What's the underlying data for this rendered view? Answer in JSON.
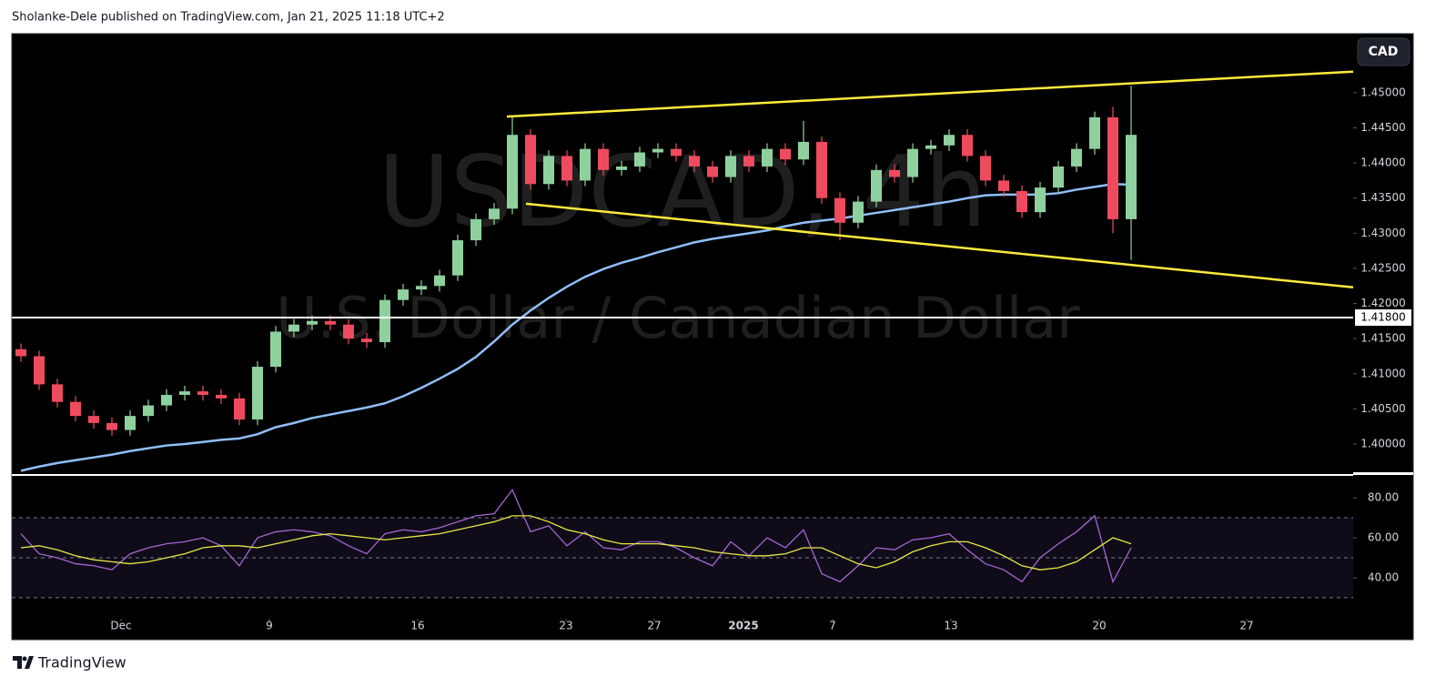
{
  "header": "Sholanke-Dele published on TradingView.com, Jan 21, 2025 11:18 UTC+2",
  "footer": "TradingView",
  "chart_data": [
    {
      "type": "candlestick",
      "title": "USDCAD, 4h",
      "subtitle": "U.S. Dollar / Canadian Dollar",
      "currency": "CAD",
      "up_color": "#8fd19e",
      "down_color": "#ef4b5f",
      "open": [
        1.4135,
        1.4125,
        1.4085,
        1.406,
        1.404,
        1.403,
        1.402,
        1.404,
        1.4055,
        1.407,
        1.4075,
        1.407,
        1.4065,
        1.4035,
        1.411,
        1.416,
        1.417,
        1.4175,
        1.417,
        1.415,
        1.4145,
        1.4205,
        1.422,
        1.4225,
        1.424,
        1.429,
        1.432,
        1.4335,
        1.444,
        1.437,
        1.441,
        1.4375,
        1.442,
        1.439,
        1.4395,
        1.4415,
        1.442,
        1.441,
        1.4395,
        1.438,
        1.441,
        1.4395,
        1.442,
        1.4405,
        1.443,
        1.435,
        1.4315,
        1.4345,
        1.439,
        1.438,
        1.442,
        1.4425,
        1.444,
        1.441,
        1.4375,
        1.436,
        1.433,
        1.4365,
        1.4395,
        1.442,
        1.4465,
        1.432
      ],
      "high": [
        1.4143,
        1.4133,
        1.4093,
        1.4068,
        1.4048,
        1.4038,
        1.4048,
        1.4063,
        1.4078,
        1.4083,
        1.4083,
        1.4078,
        1.4073,
        1.4118,
        1.4168,
        1.4178,
        1.4183,
        1.4183,
        1.4178,
        1.4158,
        1.4213,
        1.4228,
        1.4233,
        1.4248,
        1.4298,
        1.4328,
        1.4343,
        1.4465,
        1.4448,
        1.4418,
        1.4418,
        1.4428,
        1.4428,
        1.4403,
        1.4423,
        1.4428,
        1.4428,
        1.4418,
        1.4403,
        1.4418,
        1.4418,
        1.4428,
        1.4428,
        1.446,
        1.4438,
        1.4358,
        1.4353,
        1.4398,
        1.4398,
        1.4428,
        1.4433,
        1.4448,
        1.4448,
        1.4418,
        1.4383,
        1.4368,
        1.4373,
        1.4403,
        1.4428,
        1.4473,
        1.448,
        1.451
      ],
      "low": [
        1.4117,
        1.4077,
        1.4052,
        1.4032,
        1.4022,
        1.4012,
        1.4012,
        1.4032,
        1.4047,
        1.4062,
        1.4062,
        1.4057,
        1.4027,
        1.4027,
        1.4102,
        1.4152,
        1.4162,
        1.4162,
        1.4142,
        1.4137,
        1.4137,
        1.4197,
        1.4212,
        1.4217,
        1.4232,
        1.4282,
        1.4312,
        1.4327,
        1.4362,
        1.4362,
        1.4367,
        1.4367,
        1.4382,
        1.4382,
        1.4387,
        1.4407,
        1.4402,
        1.4387,
        1.4372,
        1.4372,
        1.4387,
        1.4387,
        1.4397,
        1.4397,
        1.4342,
        1.429,
        1.4307,
        1.4337,
        1.4372,
        1.4372,
        1.4412,
        1.4417,
        1.4402,
        1.4367,
        1.4352,
        1.4322,
        1.4322,
        1.4357,
        1.4387,
        1.4412,
        1.43,
        1.4262
      ],
      "close": [
        1.4125,
        1.4085,
        1.406,
        1.404,
        1.403,
        1.402,
        1.404,
        1.4055,
        1.407,
        1.4075,
        1.407,
        1.4065,
        1.4035,
        1.411,
        1.416,
        1.417,
        1.4175,
        1.417,
        1.415,
        1.4145,
        1.4205,
        1.422,
        1.4225,
        1.424,
        1.429,
        1.432,
        1.4335,
        1.444,
        1.437,
        1.441,
        1.4375,
        1.442,
        1.439,
        1.4395,
        1.4415,
        1.442,
        1.441,
        1.4395,
        1.438,
        1.441,
        1.4395,
        1.442,
        1.4405,
        1.443,
        1.435,
        1.4315,
        1.4345,
        1.439,
        1.438,
        1.442,
        1.4425,
        1.444,
        1.441,
        1.4375,
        1.436,
        1.433,
        1.4365,
        1.4395,
        1.442,
        1.4465,
        1.432,
        1.444
      ],
      "ma_color": "#90bff9",
      "ma_values": [
        1.3962,
        1.3968,
        1.3973,
        1.3977,
        1.3981,
        1.3985,
        1.399,
        1.3994,
        1.3998,
        1.4,
        1.4003,
        1.4006,
        1.4008,
        1.4014,
        1.4024,
        1.403,
        1.4037,
        1.4042,
        1.4047,
        1.4052,
        1.4058,
        1.4068,
        1.408,
        1.4093,
        1.4107,
        1.4124,
        1.4146,
        1.417,
        1.419,
        1.4208,
        1.4224,
        1.4238,
        1.4249,
        1.4258,
        1.4265,
        1.4273,
        1.428,
        1.4287,
        1.4292,
        1.4296,
        1.43,
        1.4304,
        1.431,
        1.4315,
        1.4318,
        1.4321,
        1.4325,
        1.4329,
        1.4333,
        1.4337,
        1.4341,
        1.4345,
        1.435,
        1.4354,
        1.4355,
        1.4355,
        1.4355,
        1.4357,
        1.4362,
        1.4366,
        1.437,
        1.4369
      ],
      "trendline_color": "#ffeb3b",
      "trendlines": [
        {
          "x": [
            26.7,
            73.2
          ],
          "y": [
            1.4466,
            1.453
          ]
        },
        {
          "x": [
            27.75,
            73.2
          ],
          "y": [
            1.4342,
            1.4223
          ]
        }
      ],
      "hlines": [
        {
          "value": 1.418,
          "label": "1.41800"
        }
      ],
      "xlim": [
        -0.5,
        73.2
      ],
      "ylim": [
        1.3956,
        1.4584
      ],
      "yticks": [
        {
          "value": 1.4,
          "label": "1.40000"
        },
        {
          "value": 1.405,
          "label": "1.40500"
        },
        {
          "value": 1.41,
          "label": "1.41000"
        },
        {
          "value": 1.415,
          "label": "1.41500"
        },
        {
          "value": 1.42,
          "label": "1.42000"
        },
        {
          "value": 1.425,
          "label": "1.42500"
        },
        {
          "value": 1.43,
          "label": "1.43000"
        },
        {
          "value": 1.435,
          "label": "1.43500"
        },
        {
          "value": 1.44,
          "label": "1.44000"
        },
        {
          "value": 1.445,
          "label": "1.44500"
        },
        {
          "value": 1.45,
          "label": "1.45000"
        }
      ],
      "grid": false
    },
    {
      "type": "line",
      "series": [
        {
          "color": "#a466d6",
          "values": [
            62,
            52,
            50,
            47,
            46,
            44,
            52,
            55,
            57,
            58,
            60,
            56,
            46,
            60,
            63,
            64,
            63,
            61,
            56,
            52,
            62,
            64,
            63,
            65,
            68,
            71,
            72,
            84,
            63,
            66,
            56,
            63,
            55,
            54,
            58,
            58,
            55,
            50,
            46,
            58,
            51,
            60,
            55,
            64,
            42,
            38,
            46,
            55,
            54,
            59,
            60,
            62,
            54,
            47,
            44,
            38,
            50,
            57,
            63,
            71,
            38,
            55
          ]
        },
        {
          "color": "#e8e846",
          "values": [
            55,
            56,
            54,
            51,
            49,
            48,
            47,
            48,
            50,
            52,
            55,
            56,
            56,
            55,
            57,
            59,
            61,
            62,
            61,
            60,
            59,
            60,
            61,
            62,
            64,
            66,
            68,
            71,
            71,
            68,
            64,
            62,
            59,
            57,
            57,
            57,
            56,
            55,
            53,
            52,
            51,
            51,
            52,
            55,
            55,
            51,
            47,
            45,
            48,
            53,
            56,
            58,
            58,
            55,
            51,
            46,
            44,
            45,
            48,
            54,
            60,
            57
          ]
        }
      ],
      "levels": [
        70,
        50,
        30
      ],
      "band_color": "#7e57c2",
      "xlim": [
        -0.5,
        73.2
      ],
      "ylim": [
        19.5,
        90.5
      ],
      "yticks": [
        {
          "value": 40,
          "label": "40.00"
        },
        {
          "value": 60,
          "label": "60.00"
        },
        {
          "value": 80,
          "label": "80.00"
        }
      ],
      "xticks": [
        {
          "value": 5.5,
          "label": "Dec"
        },
        {
          "value": 13.65,
          "label": "9"
        },
        {
          "value": 21.8,
          "label": "16"
        },
        {
          "value": 29.95,
          "label": "23"
        },
        {
          "value": 34.8,
          "label": "27"
        },
        {
          "value": 39.7,
          "label": "2025"
        },
        {
          "value": 44.6,
          "label": "7"
        },
        {
          "value": 51.1,
          "label": "13"
        },
        {
          "value": 59.25,
          "label": "20"
        },
        {
          "value": 67.35,
          "label": "27"
        }
      ],
      "grid": false
    }
  ]
}
